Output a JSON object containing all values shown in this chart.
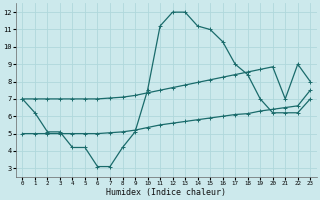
{
  "xlabel": "Humidex (Indice chaleur)",
  "background_color": "#cce9ec",
  "grid_color": "#b0d8dc",
  "line_color": "#1a6b6b",
  "x_ticks": [
    0,
    1,
    2,
    3,
    4,
    5,
    6,
    7,
    8,
    9,
    10,
    11,
    12,
    13,
    14,
    15,
    16,
    17,
    18,
    19,
    20,
    21,
    22,
    23
  ],
  "y_ticks": [
    3,
    4,
    5,
    6,
    7,
    8,
    9,
    10,
    11,
    12
  ],
  "ylim": [
    2.5,
    12.5
  ],
  "xlim": [
    -0.5,
    23.5
  ],
  "series1_y": [
    7.0,
    6.2,
    5.1,
    5.1,
    4.2,
    4.2,
    3.1,
    3.1,
    4.2,
    5.1,
    7.5,
    11.2,
    12.0,
    12.0,
    11.2,
    11.0,
    10.3,
    9.0,
    8.4,
    7.0,
    6.2,
    6.2,
    6.2,
    7.0
  ],
  "series2_y": [
    5.0,
    5.0,
    5.0,
    5.0,
    5.0,
    5.0,
    5.0,
    5.05,
    5.1,
    5.2,
    5.35,
    5.5,
    5.6,
    5.7,
    5.8,
    5.9,
    6.0,
    6.1,
    6.15,
    6.3,
    6.4,
    6.5,
    6.6,
    7.5
  ],
  "series3_y": [
    7.0,
    7.0,
    7.0,
    7.0,
    7.0,
    7.0,
    7.0,
    7.05,
    7.1,
    7.2,
    7.35,
    7.5,
    7.65,
    7.8,
    7.95,
    8.1,
    8.25,
    8.4,
    8.55,
    8.7,
    8.85,
    7.0,
    9.0,
    8.0
  ]
}
